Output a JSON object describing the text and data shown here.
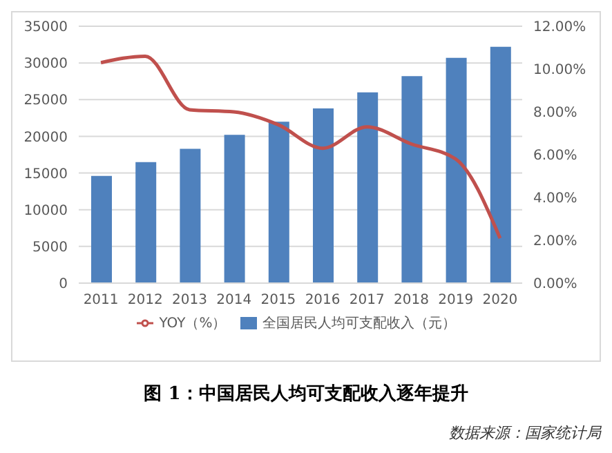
{
  "chart_data": {
    "type": "bar",
    "title": "图 1：中国居民人均可支配收入逐年提升",
    "annotations": [
      "数据来源：国家统计局"
    ],
    "categories": [
      "2011",
      "2012",
      "2013",
      "2014",
      "2015",
      "2016",
      "2017",
      "2018",
      "2019",
      "2020"
    ],
    "series": [
      {
        "name": "全国居民人均可支配收入（元）",
        "color": "#4f81bd",
        "values": [
          14600,
          16500,
          18300,
          20200,
          22000,
          23800,
          26000,
          28200,
          30700,
          32200
        ]
      },
      {
        "name": "YOY（%）",
        "type": "line",
        "axis": "y2",
        "color": "#c0504d",
        "values": [
          10.3,
          10.6,
          8.1,
          8.0,
          7.4,
          6.3,
          7.3,
          6.5,
          5.8,
          2.1
        ]
      }
    ],
    "ylim": [
      0,
      35000
    ],
    "yticks": [
      0,
      5000,
      10000,
      15000,
      20000,
      25000,
      30000,
      35000
    ],
    "y2lim": [
      0,
      12
    ],
    "y2ticks": [
      {
        "value": 0,
        "label": "0.00%"
      },
      {
        "value": 2,
        "label": "2.00%"
      },
      {
        "value": 4,
        "label": "4.00%"
      },
      {
        "value": 6,
        "label": "6.00%"
      },
      {
        "value": 8,
        "label": "8.00%"
      },
      {
        "value": 10,
        "label": "10.00%"
      },
      {
        "value": 12,
        "label": "12.00%"
      }
    ],
    "grid": "y",
    "legend": "bottom",
    "marker": "none",
    "line_style": "solid"
  }
}
